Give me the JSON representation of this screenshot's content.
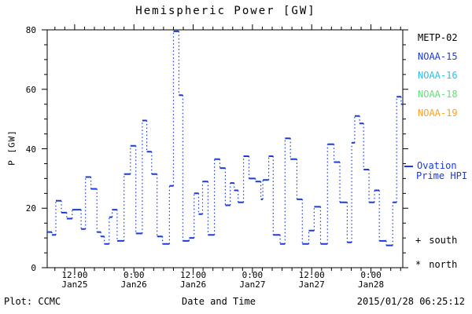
{
  "title": "Hemispheric Power [GW]",
  "axes": {
    "ylabel": "P [GW]",
    "xlabel": "Date and Time",
    "ylim": [
      0,
      80
    ],
    "y_major_ticks": [
      0,
      20,
      40,
      60,
      80
    ],
    "y_minor_step": 5,
    "xlim_hours_since_2015_01_25_00UT": [
      6.44,
      78.44
    ],
    "x_minor_step_hours": 2,
    "x_major_ticks": [
      {
        "hour": 12,
        "time": "12:00",
        "date": "Jan25"
      },
      {
        "hour": 24,
        "time": "0:00",
        "date": "Jan26"
      },
      {
        "hour": 36,
        "time": "12:00",
        "date": "Jan26"
      },
      {
        "hour": 48,
        "time": "0:00",
        "date": "Jan27"
      },
      {
        "hour": 60,
        "time": "12:00",
        "date": "Jan27"
      },
      {
        "hour": 72,
        "time": "0:00",
        "date": "Jan28"
      }
    ]
  },
  "legend": {
    "satellites": [
      {
        "label": "METP-02",
        "color": "#000000"
      },
      {
        "label": "NOAA-15",
        "color": "#1b3ad8"
      },
      {
        "label": "NOAA-16",
        "color": "#27c2f2"
      },
      {
        "label": "NOAA-18",
        "color": "#63df7c"
      },
      {
        "label": "NOAA-19",
        "color": "#ffa11c"
      }
    ],
    "model_line": {
      "label": "Ovation Prime HPI",
      "label_lines": [
        "Ovation",
        "Prime HPI"
      ],
      "color": "#1b3ad8"
    },
    "hemisphere_markers": [
      {
        "symbol": "+",
        "label": "south"
      },
      {
        "symbol": "*",
        "label": "north"
      }
    ]
  },
  "footer": {
    "left": "Plot: CCMC",
    "right": "2015/01/28 06:25:12"
  },
  "chart_data": {
    "type": "line",
    "subtype": "step",
    "title": "Hemispheric Power [GW]",
    "xlabel": "Date and Time",
    "ylabel": "P [GW]",
    "ylim": [
      0,
      80
    ],
    "xlim": [
      6.44,
      78.44
    ],
    "x_unit": "hours since 2015-01-25 00:00 UT",
    "grid": false,
    "legend_position": "right-outside",
    "line_color": "#1b3ad8",
    "series": [
      {
        "name": "Ovation Prime HPI",
        "segments_start_end_gw": [
          [
            6.44,
            7.4,
            12
          ],
          [
            7.4,
            8.2,
            11
          ],
          [
            8.2,
            9.3,
            22.5
          ],
          [
            9.3,
            10.4,
            18.5
          ],
          [
            10.4,
            11.5,
            16.5
          ],
          [
            11.5,
            13.3,
            19.5
          ],
          [
            13.3,
            14.2,
            13
          ],
          [
            14.2,
            15.3,
            30.5
          ],
          [
            15.3,
            16.5,
            26.5
          ],
          [
            16.5,
            17.3,
            12
          ],
          [
            17.3,
            18,
            10.5
          ],
          [
            18,
            19,
            8
          ],
          [
            19,
            19.6,
            17
          ],
          [
            19.6,
            20.6,
            19.5
          ],
          [
            20.6,
            22,
            9
          ],
          [
            22,
            23.3,
            31.5
          ],
          [
            23.3,
            24.4,
            41
          ],
          [
            24.4,
            25.7,
            11.5
          ],
          [
            25.7,
            26.6,
            49.5
          ],
          [
            26.6,
            27.6,
            39
          ],
          [
            27.6,
            28.7,
            31.5
          ],
          [
            28.7,
            29.8,
            10.5
          ],
          [
            29.8,
            31.2,
            8
          ],
          [
            31.2,
            32,
            27.5
          ],
          [
            32,
            33.1,
            79.5
          ],
          [
            33.1,
            33.9,
            58
          ],
          [
            33.9,
            35.2,
            9
          ],
          [
            35.2,
            36.2,
            10
          ],
          [
            36.2,
            37.1,
            25
          ],
          [
            37.1,
            37.9,
            18
          ],
          [
            37.9,
            39,
            29
          ],
          [
            39,
            40.3,
            11
          ],
          [
            40.3,
            41.4,
            36.5
          ],
          [
            41.4,
            42.5,
            33.5
          ],
          [
            42.5,
            43.5,
            21
          ],
          [
            43.5,
            44.3,
            28.5
          ],
          [
            44.3,
            45.1,
            26
          ],
          [
            45.1,
            46.2,
            22
          ],
          [
            46.2,
            47.3,
            37.5
          ],
          [
            47.3,
            48.6,
            30
          ],
          [
            48.6,
            49.7,
            29
          ],
          [
            49.7,
            50.1,
            23
          ],
          [
            50.1,
            51.3,
            29.5
          ],
          [
            51.3,
            52.2,
            37.5
          ],
          [
            52.2,
            53.6,
            11
          ],
          [
            53.6,
            54.6,
            8
          ],
          [
            54.6,
            55.7,
            43.5
          ],
          [
            55.7,
            57,
            36.5
          ],
          [
            57,
            58.1,
            23
          ],
          [
            58.1,
            59.4,
            8
          ],
          [
            59.4,
            60.5,
            12.5
          ],
          [
            60.5,
            61.8,
            20.5
          ],
          [
            61.8,
            63.2,
            8
          ],
          [
            63.2,
            64.5,
            41.5
          ],
          [
            64.5,
            65.7,
            35.5
          ],
          [
            65.7,
            67.2,
            22
          ],
          [
            67.2,
            68.1,
            8.5
          ],
          [
            68.1,
            68.7,
            42
          ],
          [
            68.7,
            69.7,
            51
          ],
          [
            69.7,
            70.5,
            48.5
          ],
          [
            70.5,
            71.6,
            33
          ],
          [
            71.6,
            72.7,
            22
          ],
          [
            72.7,
            73.7,
            26
          ],
          [
            73.7,
            75.1,
            9
          ],
          [
            75.1,
            76.4,
            7.5
          ],
          [
            76.4,
            77.2,
            22
          ],
          [
            77.2,
            78.1,
            57.5
          ],
          [
            78.1,
            78.44,
            55
          ]
        ]
      }
    ]
  }
}
